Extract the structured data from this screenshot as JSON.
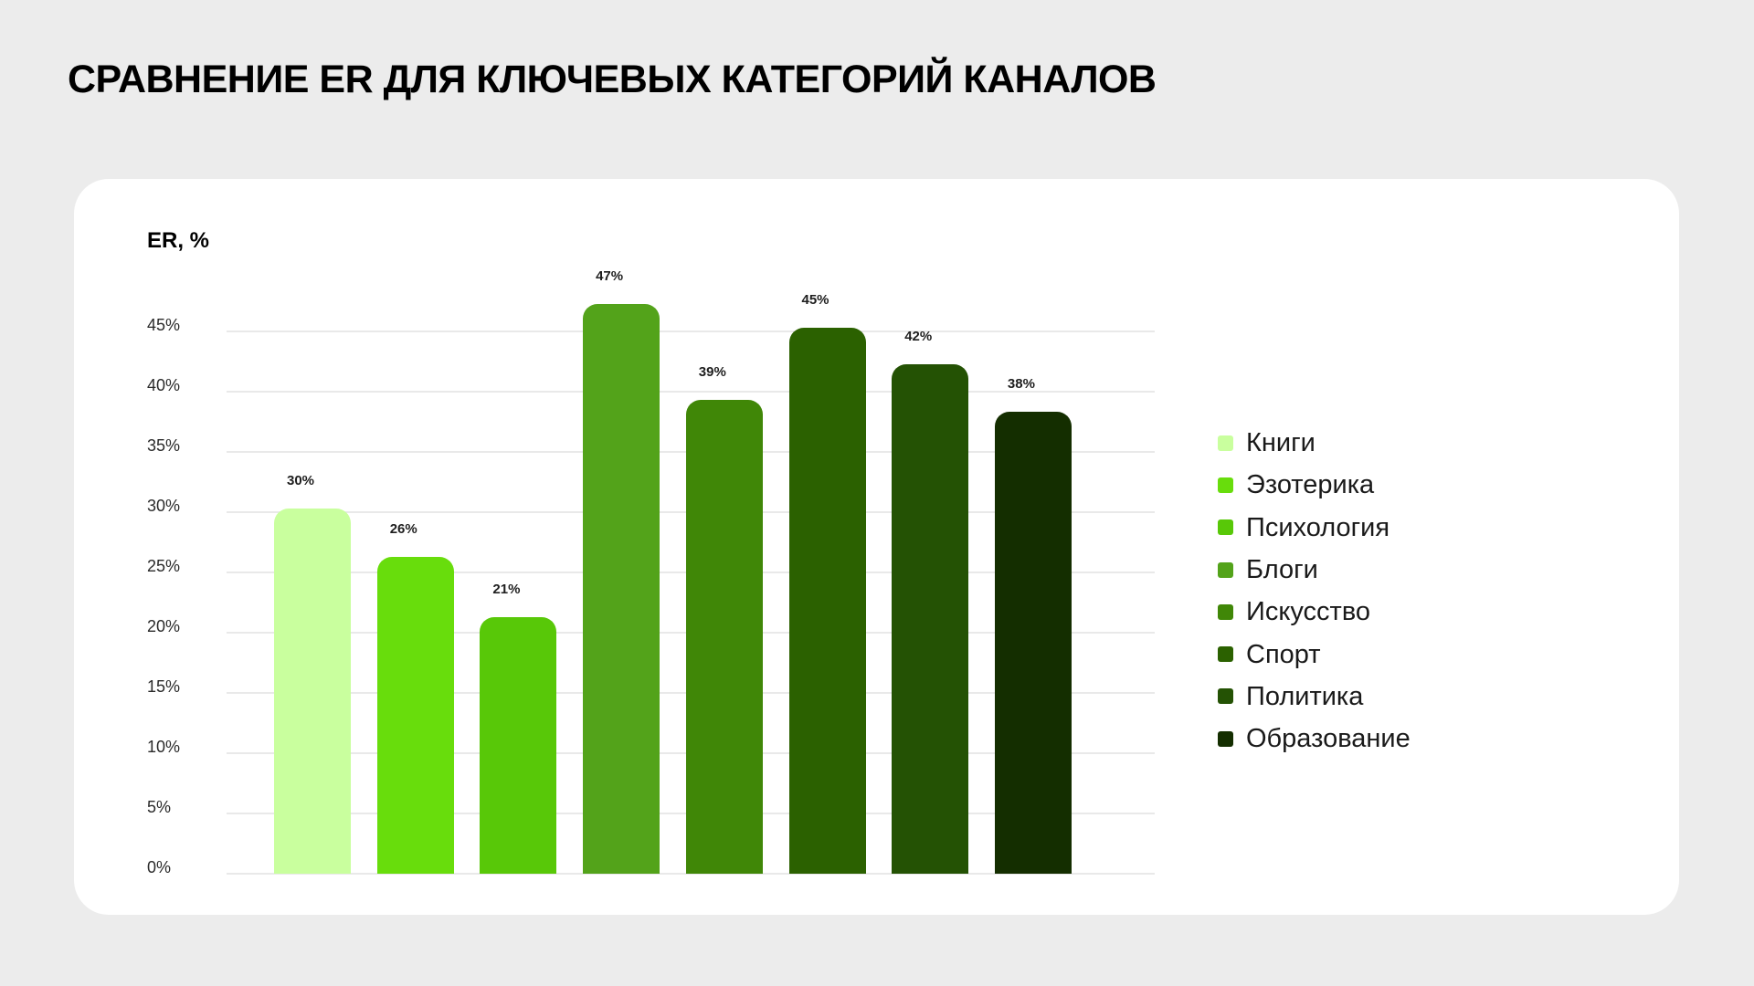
{
  "page": {
    "title": "СРАВНЕНИЕ ER ДЛЯ КЛЮЧЕВЫХ КАТЕГОРИЙ КАНАЛОВ",
    "background": "#ececec",
    "card_background": "#ffffff"
  },
  "chart_data": {
    "type": "bar",
    "title": "СРАВНЕНИЕ ER ДЛЯ КЛЮЧЕВЫХ КАТЕГОРИЙ КАНАЛОВ",
    "xlabel": "",
    "ylabel": "ER, %",
    "ylim": [
      0,
      45
    ],
    "y_ticks": [
      "0%",
      "5%",
      "10%",
      "15%",
      "20%",
      "25%",
      "30%",
      "35%",
      "40%",
      "45%"
    ],
    "y_tick_values": [
      0,
      5,
      10,
      15,
      20,
      25,
      30,
      35,
      40,
      45
    ],
    "grid": true,
    "legend_position": "right",
    "categories": [
      "Книги",
      "Эзотерика",
      "Психология",
      "Блоги",
      "Искусство",
      "Спорт",
      "Политика",
      "Образование"
    ],
    "values": [
      30,
      26,
      21,
      47,
      39,
      45,
      42,
      38
    ],
    "value_labels": [
      "30%",
      "26%",
      "21%",
      "47%",
      "39%",
      "45%",
      "42%",
      "38%"
    ],
    "colors": [
      "#c9ff9e",
      "#68dd0c",
      "#58c808",
      "#53a31a",
      "#408707",
      "#2b6100",
      "#245204",
      "#142e00"
    ]
  },
  "legend": {
    "items": [
      {
        "label": "Книги",
        "color": "#c9ff9e"
      },
      {
        "label": "Эзотерика",
        "color": "#68dd0c"
      },
      {
        "label": "Психология",
        "color": "#58c808"
      },
      {
        "label": "Блоги",
        "color": "#53a31a"
      },
      {
        "label": "Искусство",
        "color": "#408707"
      },
      {
        "label": "Спорт",
        "color": "#2b6100"
      },
      {
        "label": "Политика",
        "color": "#245204"
      },
      {
        "label": "Образование",
        "color": "#142e00"
      }
    ]
  }
}
